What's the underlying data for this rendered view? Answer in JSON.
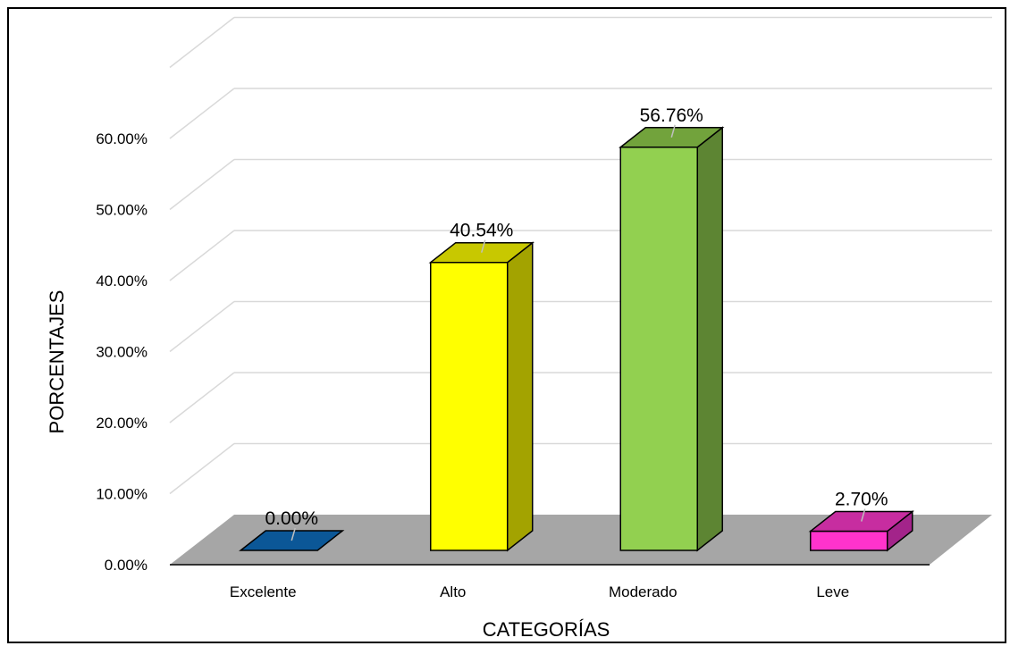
{
  "chart_data": {
    "type": "bar",
    "title": "",
    "xlabel": "CATEGORÍAS",
    "ylabel": "PORCENTAJES",
    "ylim": [
      0,
      60
    ],
    "yticks": [
      0,
      10,
      20,
      30,
      40,
      50,
      60
    ],
    "ytick_labels": [
      "0.00%",
      "10.00%",
      "20.00%",
      "30.00%",
      "40.00%",
      "50.00%",
      "60.00%"
    ],
    "categories": [
      "Excelente",
      "Alto",
      "Moderado",
      "Leve"
    ],
    "values": [
      0.0,
      40.54,
      56.76,
      2.7
    ],
    "data_labels": [
      "0.00%",
      "40.54%",
      "56.76%",
      "2.70%"
    ],
    "colors": [
      {
        "front": "#0b5797",
        "top": "#0b5797",
        "side": "#084272"
      },
      {
        "front": "#ffff00",
        "top": "#c8c800",
        "side": "#a3a300"
      },
      {
        "front": "#92d050",
        "top": "#72a33c",
        "side": "#5d8533"
      },
      {
        "front": "#ff33cc",
        "top": "#c72da0",
        "side": "#a3248a"
      }
    ],
    "floor_color": "#a6a6a6",
    "grid": true,
    "style": "3d-column"
  }
}
